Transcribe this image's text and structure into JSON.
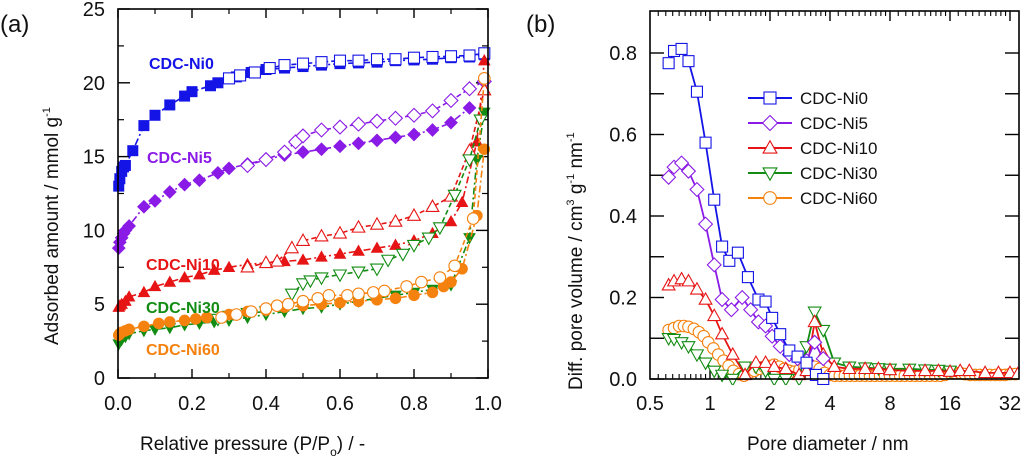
{
  "chart_data": [
    {
      "panel": "(a)",
      "type": "scatter",
      "title": "",
      "xlabel": "Relative pressure (P/P",
      "xlabel_sub": "o",
      "xlabel_tail": ") / -",
      "ylabel": "Adsorbed amount / mmol g",
      "ylabel_sup": "-1",
      "xlim": [
        0.0,
        1.0
      ],
      "ylim": [
        0,
        25
      ],
      "xticks": [
        0.0,
        0.2,
        0.4,
        0.6,
        0.8,
        1.0
      ],
      "xtick_labels": [
        "0.0",
        "0.2",
        "0.4",
        "0.6",
        "0.8",
        "1.0"
      ],
      "yticks": [
        0,
        5,
        10,
        15,
        20,
        25
      ],
      "ytick_labels": [
        "0",
        "5",
        "10",
        "15",
        "20",
        "25"
      ],
      "grid": false,
      "legend": "inline-labels",
      "series": [
        {
          "name": "CDC-Ni0",
          "label": "CDC-Ni0",
          "color": "#1414e6",
          "marker": "square",
          "adsorption": {
            "x": [
              0.002,
              0.005,
              0.01,
              0.015,
              0.02,
              0.04,
              0.07,
              0.1,
              0.14,
              0.18,
              0.2,
              0.25,
              0.27,
              0.32,
              0.36,
              0.4,
              0.45,
              0.5,
              0.55,
              0.6,
              0.65,
              0.7,
              0.75,
              0.8,
              0.85,
              0.9,
              0.95,
              0.99
            ],
            "y": [
              13.0,
              13.5,
              14.0,
              14.3,
              14.4,
              15.4,
              17.1,
              17.8,
              18.5,
              19.1,
              19.4,
              19.8,
              20.0,
              20.4,
              20.7,
              20.9,
              21.0,
              21.1,
              21.2,
              21.3,
              21.35,
              21.4,
              21.5,
              21.55,
              21.6,
              21.7,
              21.75,
              21.9
            ]
          },
          "desorption": {
            "x": [
              0.3,
              0.33,
              0.37,
              0.41,
              0.45,
              0.5,
              0.55,
              0.6,
              0.65,
              0.7,
              0.75,
              0.8,
              0.85,
              0.9,
              0.95,
              0.99
            ],
            "y": [
              20.3,
              20.5,
              20.7,
              21.0,
              21.2,
              21.3,
              21.4,
              21.5,
              21.5,
              21.6,
              21.6,
              21.7,
              21.75,
              21.8,
              21.85,
              22.0
            ]
          }
        },
        {
          "name": "CDC-Ni5",
          "label": "CDC-Ni5",
          "color": "#8a1ae6",
          "marker": "diamond",
          "adsorption": {
            "x": [
              0.002,
              0.005,
              0.01,
              0.015,
              0.02,
              0.03,
              0.07,
              0.1,
              0.14,
              0.18,
              0.22,
              0.27,
              0.3,
              0.35,
              0.4,
              0.45,
              0.5,
              0.55,
              0.6,
              0.65,
              0.7,
              0.75,
              0.8,
              0.85,
              0.9,
              0.95
            ],
            "y": [
              8.8,
              9.2,
              9.5,
              9.8,
              10.0,
              10.3,
              11.6,
              12.0,
              12.6,
              13.1,
              13.4,
              13.9,
              14.2,
              14.5,
              14.8,
              15.1,
              15.3,
              15.5,
              15.7,
              15.9,
              16.1,
              16.3,
              16.5,
              16.8,
              17.3,
              18.3
            ]
          },
          "desorption": {
            "x": [
              0.35,
              0.4,
              0.45,
              0.48,
              0.5,
              0.55,
              0.6,
              0.65,
              0.7,
              0.75,
              0.8,
              0.85,
              0.9,
              0.95,
              0.99
            ],
            "y": [
              14.4,
              14.8,
              15.3,
              16.0,
              16.4,
              16.8,
              17.0,
              17.2,
              17.4,
              17.6,
              17.8,
              18.1,
              18.8,
              19.6,
              20.1
            ]
          }
        },
        {
          "name": "CDC-Ni10",
          "label": "CDC-Ni10",
          "color": "#e61414",
          "marker": "triangle-up",
          "adsorption": {
            "x": [
              0.002,
              0.005,
              0.01,
              0.02,
              0.03,
              0.07,
              0.1,
              0.14,
              0.18,
              0.22,
              0.26,
              0.3,
              0.35,
              0.4,
              0.45,
              0.5,
              0.55,
              0.6,
              0.65,
              0.7,
              0.75,
              0.8,
              0.85,
              0.9,
              0.93,
              0.97,
              0.99
            ],
            "y": [
              4.8,
              4.9,
              5.0,
              5.2,
              5.5,
              5.8,
              6.2,
              6.5,
              6.8,
              7.0,
              7.3,
              7.5,
              7.7,
              7.8,
              7.9,
              8.0,
              8.2,
              8.4,
              8.6,
              8.8,
              9.0,
              9.3,
              9.8,
              10.6,
              11.9,
              16.0,
              21.5
            ]
          },
          "desorption": {
            "x": [
              0.35,
              0.4,
              0.43,
              0.47,
              0.5,
              0.55,
              0.6,
              0.65,
              0.7,
              0.75,
              0.8,
              0.85,
              0.9,
              0.95,
              0.99
            ],
            "y": [
              7.5,
              7.8,
              7.9,
              8.8,
              9.3,
              9.6,
              9.8,
              10.2,
              10.4,
              10.6,
              11.0,
              11.6,
              12.3,
              15.4,
              19.5
            ]
          }
        },
        {
          "name": "CDC-Ni30",
          "label": "CDC-Ni30",
          "color": "#128c12",
          "marker": "triangle-down",
          "adsorption": {
            "x": [
              0.002,
              0.005,
              0.01,
              0.02,
              0.03,
              0.07,
              0.1,
              0.14,
              0.18,
              0.22,
              0.26,
              0.3,
              0.35,
              0.4,
              0.45,
              0.5,
              0.55,
              0.6,
              0.65,
              0.7,
              0.75,
              0.8,
              0.85,
              0.9,
              0.95,
              0.97,
              0.99
            ],
            "y": [
              2.3,
              2.5,
              2.6,
              2.8,
              3.0,
              3.2,
              3.3,
              3.4,
              3.6,
              3.7,
              3.8,
              3.9,
              4.1,
              4.3,
              4.5,
              4.7,
              4.8,
              5.0,
              5.2,
              5.4,
              5.6,
              5.8,
              6.0,
              6.3,
              9.5,
              14.8,
              18.0
            ]
          },
          "desorption": {
            "x": [
              0.27,
              0.3,
              0.35,
              0.4,
              0.45,
              0.47,
              0.5,
              0.52,
              0.55,
              0.6,
              0.65,
              0.7,
              0.73,
              0.77,
              0.8,
              0.84,
              0.87,
              0.91,
              0.95,
              0.98
            ],
            "y": [
              4.0,
              4.2,
              4.4,
              4.5,
              4.8,
              5.7,
              6.4,
              6.6,
              6.8,
              7.0,
              7.2,
              7.4,
              8.0,
              8.4,
              9.0,
              9.5,
              10.2,
              12.4,
              14.8,
              17.5
            ]
          }
        },
        {
          "name": "CDC-Ni60",
          "label": "CDC-Ni60",
          "color": "#f5820f",
          "marker": "circle",
          "adsorption": {
            "x": [
              0.002,
              0.005,
              0.01,
              0.02,
              0.03,
              0.07,
              0.11,
              0.14,
              0.18,
              0.21,
              0.24,
              0.3,
              0.35,
              0.4,
              0.45,
              0.5,
              0.55,
              0.6,
              0.65,
              0.7,
              0.75,
              0.8,
              0.85,
              0.88,
              0.9,
              0.93,
              0.97,
              0.99
            ],
            "y": [
              2.9,
              3.0,
              3.1,
              3.2,
              3.3,
              3.5,
              3.7,
              3.8,
              3.9,
              4.0,
              4.1,
              4.3,
              4.5,
              4.6,
              4.8,
              4.9,
              5.0,
              5.1,
              5.2,
              5.3,
              5.4,
              5.6,
              5.8,
              6.2,
              6.5,
              7.4,
              11.0,
              15.5
            ]
          },
          "desorption": {
            "x": [
              0.28,
              0.32,
              0.36,
              0.4,
              0.43,
              0.46,
              0.5,
              0.54,
              0.57,
              0.62,
              0.65,
              0.69,
              0.72,
              0.78,
              0.82,
              0.87,
              0.91,
              0.96,
              0.99
            ],
            "y": [
              4.1,
              4.3,
              4.5,
              4.7,
              4.9,
              5.0,
              5.2,
              5.4,
              5.6,
              5.6,
              5.7,
              5.8,
              5.9,
              6.2,
              6.5,
              6.8,
              7.6,
              10.8,
              20.3
            ]
          }
        }
      ]
    },
    {
      "panel": "(b)",
      "type": "line",
      "title": "",
      "xlabel": "Pore diameter / nm",
      "ylabel": "Diff. pore volume / cm",
      "ylabel_parts": [
        "Diff. pore volume / cm",
        "3",
        " g",
        "-1",
        " nm",
        "-1"
      ],
      "xscale": "log2",
      "xlim": [
        0.5,
        36
      ],
      "ylim": [
        0.0,
        0.9
      ],
      "xticks": [
        0.5,
        1,
        2,
        4,
        8,
        16,
        32
      ],
      "xtick_labels": [
        "0.5",
        "1",
        "2",
        "4",
        "8",
        "16",
        "32"
      ],
      "yticks": [
        0.0,
        0.2,
        0.4,
        0.6,
        0.8
      ],
      "ytick_labels": [
        "0.0",
        "0.2",
        "0.4",
        "0.6",
        "0.8"
      ],
      "grid": false,
      "legend": "upper-center",
      "series": [
        {
          "name": "CDC-Ni0",
          "color": "#1414e6",
          "marker": "square",
          "x": [
            0.62,
            0.66,
            0.72,
            0.78,
            0.86,
            0.95,
            1.05,
            1.15,
            1.25,
            1.38,
            1.55,
            1.75,
            1.9,
            2.05,
            2.25,
            2.5,
            2.75,
            3.05,
            3.4,
            3.7
          ],
          "y": [
            0.775,
            0.805,
            0.81,
            0.78,
            0.705,
            0.58,
            0.44,
            0.325,
            0.29,
            0.31,
            0.25,
            0.195,
            0.19,
            0.15,
            0.11,
            0.07,
            0.055,
            0.04,
            0.01,
            0.0
          ]
        },
        {
          "name": "CDC-Ni5",
          "color": "#8a1ae6",
          "marker": "diamond",
          "x": [
            0.62,
            0.66,
            0.72,
            0.78,
            0.86,
            0.95,
            1.05,
            1.15,
            1.28,
            1.45,
            1.6,
            1.75,
            1.9,
            2.05,
            2.25,
            2.5,
            2.75,
            3.05,
            3.35,
            3.7
          ],
          "y": [
            0.495,
            0.52,
            0.53,
            0.51,
            0.465,
            0.38,
            0.28,
            0.195,
            0.17,
            0.2,
            0.17,
            0.14,
            0.13,
            0.105,
            0.08,
            0.06,
            0.05,
            0.045,
            0.09,
            0.05
          ]
        },
        {
          "name": "CDC-Ni10",
          "color": "#e61414",
          "marker": "triangle-up",
          "x": [
            0.62,
            0.66,
            0.72,
            0.78,
            0.86,
            0.95,
            1.05,
            1.15,
            1.3,
            1.5,
            1.7,
            1.9,
            2.1,
            2.4,
            2.8,
            3.05,
            3.35,
            3.7,
            4.2,
            5,
            6,
            7,
            8,
            10,
            12,
            14,
            16,
            18,
            20,
            24,
            28,
            32,
            35
          ],
          "y": [
            0.23,
            0.24,
            0.245,
            0.24,
            0.22,
            0.195,
            0.155,
            0.11,
            0.06,
            0.01,
            0.04,
            0.04,
            0.03,
            0.025,
            0.01,
            0.02,
            0.14,
            0.06,
            0.03,
            0.025,
            0.025,
            0.025,
            0.022,
            0.02,
            0.02,
            0.02,
            0.018,
            0.02,
            0.02,
            0.015,
            0.015,
            0.015,
            0.012
          ]
        },
        {
          "name": "CDC-Ni30",
          "color": "#128c12",
          "marker": "triangle-down",
          "x": [
            0.62,
            0.66,
            0.72,
            0.78,
            0.86,
            0.95,
            1.05,
            1.15,
            1.3,
            1.5,
            1.7,
            1.9,
            2.1,
            2.4,
            2.8,
            3.05,
            3.35,
            3.7,
            4.2,
            5,
            6,
            7,
            8,
            10,
            12,
            14,
            16
          ],
          "y": [
            0.1,
            0.098,
            0.09,
            0.08,
            0.06,
            0.04,
            0.02,
            0.01,
            0.0,
            0.03,
            0.03,
            0.02,
            0.0,
            0.0,
            0.0,
            0.08,
            0.165,
            0.12,
            0.04,
            0.03,
            0.028,
            0.026,
            0.025,
            0.025,
            0.023,
            0.022,
            0.02
          ]
        },
        {
          "name": "CDC-Ni60",
          "color": "#f5820f",
          "marker": "circle",
          "x": [
            0.62,
            0.66,
            0.7,
            0.74,
            0.78,
            0.83,
            0.88,
            0.93,
            0.98,
            1.04,
            1.1,
            1.17,
            1.24,
            1.31,
            1.4,
            1.48,
            1.57,
            1.67,
            1.77,
            1.87,
            1.98,
            2.1,
            2.23,
            2.36,
            2.5,
            2.65,
            2.81,
            2.98,
            3.16,
            3.35,
            3.55,
            3.76,
            3.99,
            4.23,
            4.48,
            4.75,
            5.04,
            5.34,
            5.66,
            6.0,
            6.35,
            6.73,
            7.13,
            7.56,
            8.0,
            8.5,
            9.0,
            9.5,
            10.1,
            10.7,
            11.3,
            12.0,
            12.7,
            13.5,
            14.3,
            15.1,
            16.0,
            17.0,
            18.0,
            19.0,
            20.2,
            21.4,
            22.6,
            24.0,
            25.4,
            27.0,
            28.5,
            30.2,
            32.0,
            34.0
          ],
          "y": [
            0.12,
            0.125,
            0.13,
            0.13,
            0.128,
            0.123,
            0.115,
            0.105,
            0.09,
            0.075,
            0.06,
            0.045,
            0.032,
            0.02,
            0.012,
            0.008,
            0.015,
            0.02,
            0.025,
            0.03,
            0.032,
            0.035,
            0.03,
            0.025,
            0.02,
            0.018,
            0.022,
            0.03,
            0.035,
            0.03,
            0.025,
            0.015,
            0.01,
            0.008,
            0.008,
            0.008,
            0.008,
            0.008,
            0.008,
            0.008,
            0.008,
            0.008,
            0.008,
            0.008,
            0.008,
            0.008,
            0.008,
            0.008,
            0.008,
            0.008,
            0.008,
            0.008,
            0.008,
            0.008,
            0.008,
            0.01,
            0.015,
            0.015,
            0.015,
            0.012,
            0.01,
            0.01,
            0.01,
            0.01,
            0.01,
            0.01,
            0.01,
            0.01,
            0.012,
            0.012
          ]
        }
      ]
    }
  ]
}
